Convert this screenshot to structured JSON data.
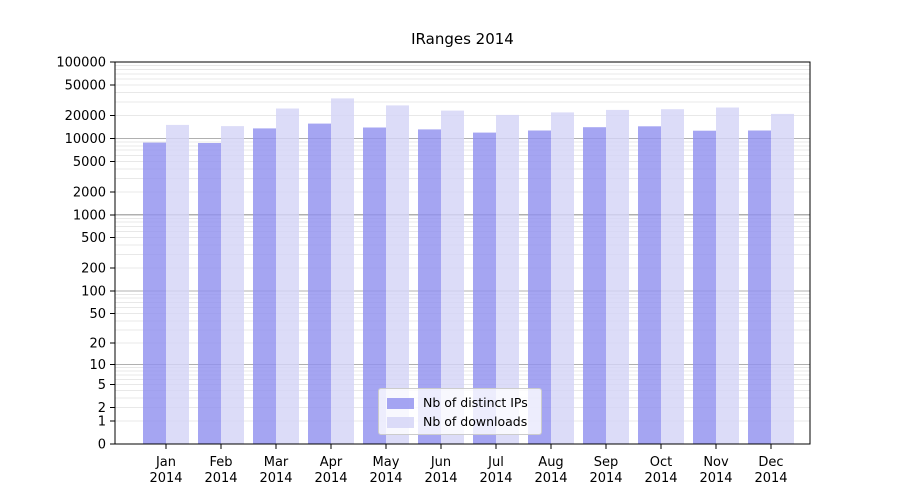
{
  "chart_data": {
    "type": "bar",
    "title": "IRanges 2014",
    "categories": [
      "Jan 2014",
      "Feb 2014",
      "Mar 2014",
      "Apr 2014",
      "May 2014",
      "Jun 2014",
      "Jul 2014",
      "Aug 2014",
      "Sep 2014",
      "Oct 2014",
      "Nov 2014",
      "Dec 2014"
    ],
    "series": [
      {
        "name": "Nb of distinct IPs",
        "color": "#9191ef",
        "values": [
          8800,
          8700,
          13500,
          15600,
          13900,
          13100,
          11900,
          12700,
          14000,
          14400,
          12600,
          12700
        ]
      },
      {
        "name": "Nb of downloads",
        "color": "#d4d4f6",
        "values": [
          15000,
          14500,
          24600,
          33400,
          27000,
          23100,
          20300,
          21900,
          23600,
          24100,
          25400,
          20900
        ]
      }
    ],
    "yscale": "log10(1+x)",
    "ylim": [
      0,
      100000
    ],
    "yticks": [
      0,
      1,
      2,
      5,
      10,
      20,
      50,
      100,
      200,
      500,
      1000,
      2000,
      5000,
      10000,
      20000,
      50000,
      100000
    ],
    "grid": "horizontal",
    "grid_major_color": "#b0b0b0",
    "grid_minor_color": "#e8e8e8",
    "axis_color": "#000000",
    "legend_position": "lower center"
  }
}
